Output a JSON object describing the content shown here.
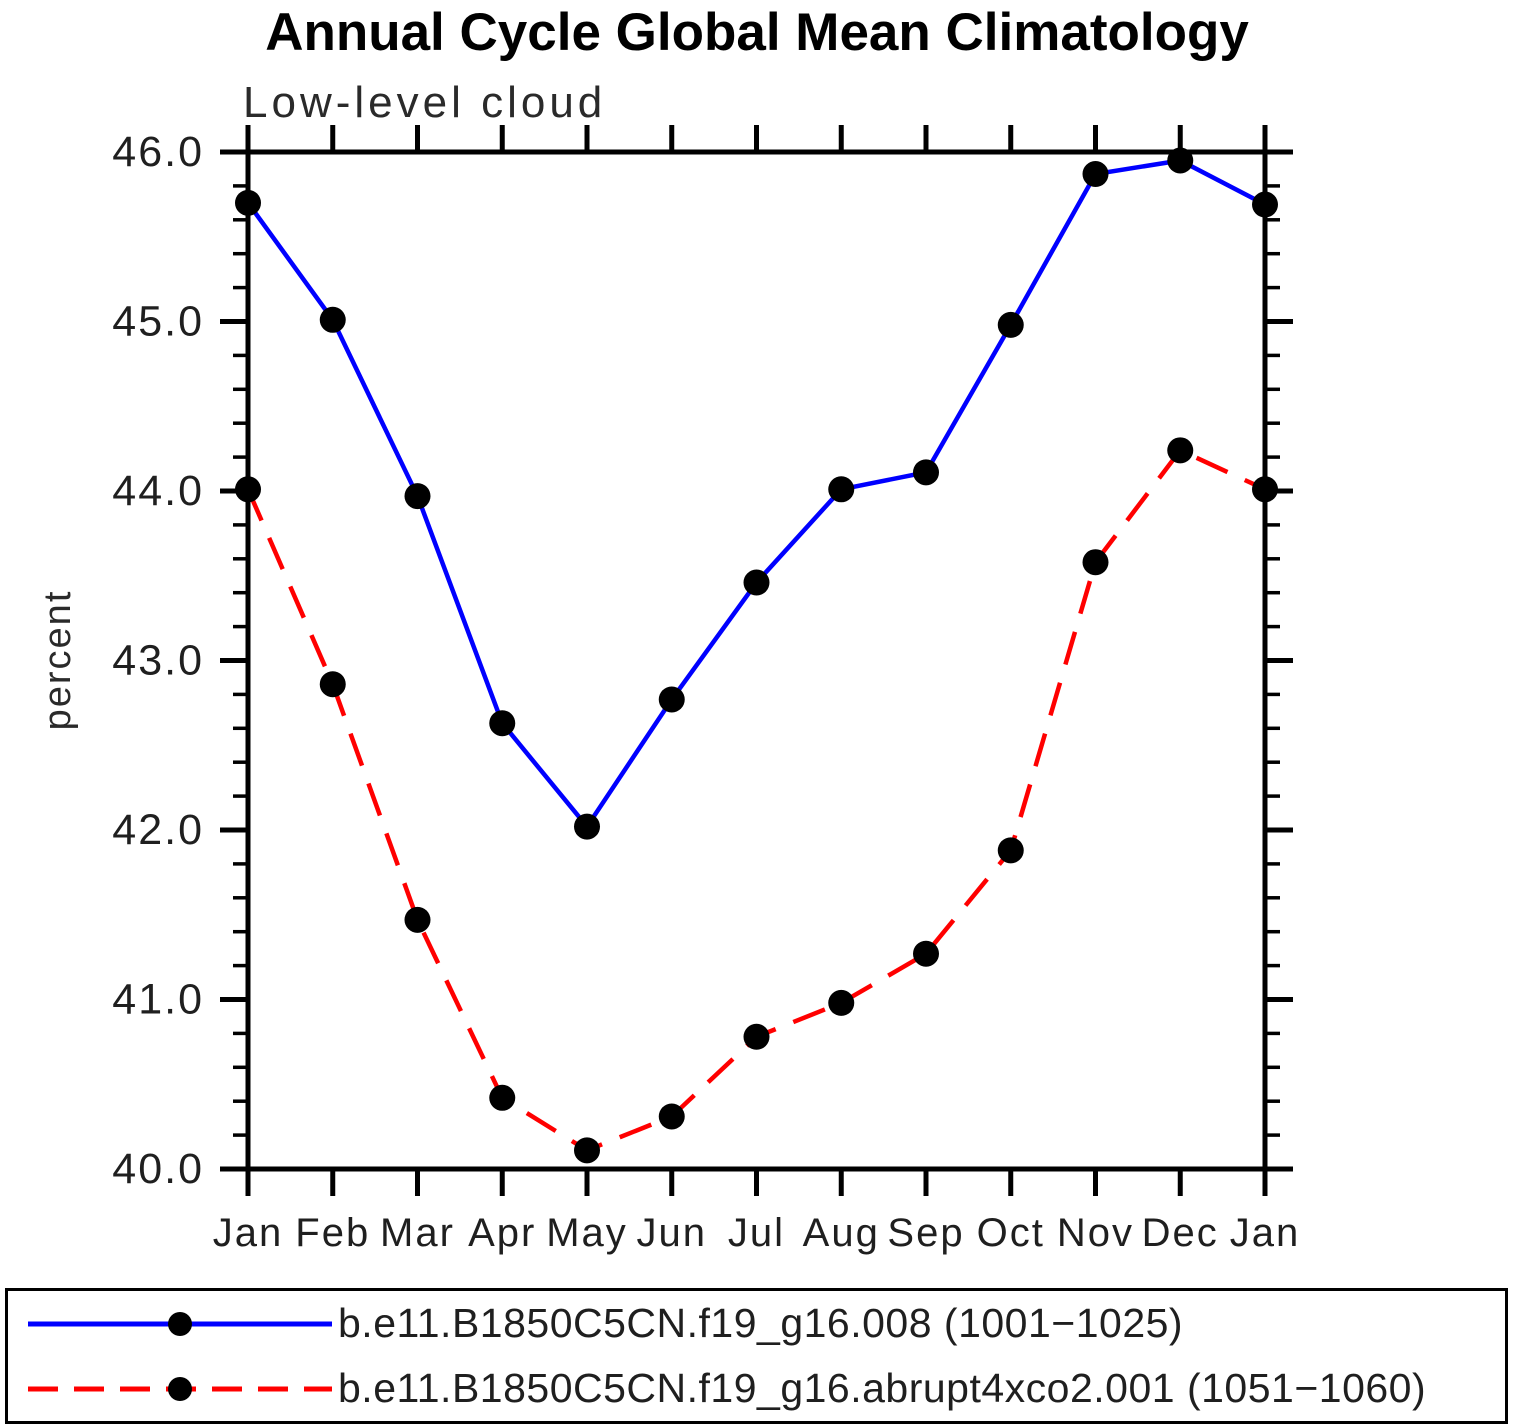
{
  "title": "Annual Cycle Global Mean Climatology",
  "subtitle": "Low-level cloud",
  "ylabel": "percent",
  "chart_data": {
    "type": "line",
    "categories": [
      "Jan",
      "Feb",
      "Mar",
      "Apr",
      "May",
      "Jun",
      "Jul",
      "Aug",
      "Sep",
      "Oct",
      "Nov",
      "Dec",
      "Jan"
    ],
    "series": [
      {
        "name": "b.e11.B1850C5CN.f19_g16.008 (1001−1025)",
        "color": "#0000ff",
        "line_style": "solid",
        "marker": "filled-circle",
        "marker_color": "#000000",
        "values": [
          45.7,
          45.01,
          43.97,
          42.63,
          42.02,
          42.77,
          43.46,
          44.01,
          44.11,
          44.98,
          45.87,
          45.95,
          45.69
        ]
      },
      {
        "name": "b.e11.B1850C5CN.f19_g16.abrupt4xco2.001 (1051−1060)",
        "color": "#ff0000",
        "line_style": "dashed",
        "marker": "filled-circle",
        "marker_color": "#000000",
        "values": [
          44.01,
          42.86,
          41.47,
          40.42,
          40.11,
          40.31,
          40.78,
          40.98,
          41.27,
          41.88,
          43.58,
          44.24,
          44.01
        ]
      }
    ],
    "ylim": [
      40.0,
      46.0
    ],
    "y_major_step": 1.0,
    "y_minor_step": 0.2,
    "y_tick_labels": [
      "40.0",
      "41.0",
      "42.0",
      "43.0",
      "44.0",
      "45.0",
      "46.0"
    ],
    "grid": "off",
    "legend_position": "bottom"
  },
  "legend": {
    "items": [
      {
        "label": "b.e11.B1850C5CN.f19_g16.008 (1001−1025)"
      },
      {
        "label": "b.e11.B1850C5CN.f19_g16.abrupt4xco2.001 (1051−1060)"
      }
    ]
  }
}
